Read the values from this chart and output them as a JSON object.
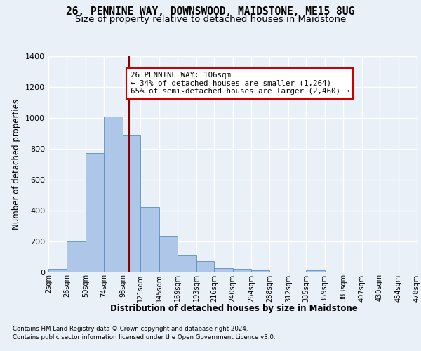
{
  "title_line1": "26, PENNINE WAY, DOWNSWOOD, MAIDSTONE, ME15 8UG",
  "title_line2": "Size of property relative to detached houses in Maidstone",
  "xlabel": "Distribution of detached houses by size in Maidstone",
  "ylabel": "Number of detached properties",
  "footnote1": "Contains HM Land Registry data © Crown copyright and database right 2024.",
  "footnote2": "Contains public sector information licensed under the Open Government Licence v3.0.",
  "bin_edges": [
    2,
    26,
    50,
    74,
    98,
    121,
    145,
    169,
    193,
    216,
    240,
    264,
    288,
    312,
    335,
    359,
    383,
    407,
    430,
    454,
    478
  ],
  "bin_counts": [
    22,
    200,
    770,
    1010,
    885,
    420,
    235,
    110,
    70,
    25,
    22,
    10,
    0,
    0,
    10,
    0,
    0,
    0,
    0,
    0
  ],
  "bar_color": "#aec6e8",
  "bar_edge_color": "#5a8fc0",
  "property_size": 106,
  "vline_color": "#8b0000",
  "annotation_text": "26 PENNINE WAY: 106sqm\n← 34% of detached houses are smaller (1,264)\n65% of semi-detached houses are larger (2,460) →",
  "annotation_box_color": "#ffffff",
  "annotation_box_edge": "#cc0000",
  "ylim": [
    0,
    1400
  ],
  "yticks": [
    0,
    200,
    400,
    600,
    800,
    1000,
    1200,
    1400
  ],
  "xtick_labels": [
    "2sqm",
    "26sqm",
    "50sqm",
    "74sqm",
    "98sqm",
    "121sqm",
    "145sqm",
    "169sqm",
    "193sqm",
    "216sqm",
    "240sqm",
    "264sqm",
    "288sqm",
    "312sqm",
    "335sqm",
    "359sqm",
    "383sqm",
    "407sqm",
    "430sqm",
    "454sqm",
    "478sqm"
  ],
  "background_color": "#eaf0f8",
  "grid_color": "#ffffff",
  "title_fontsize": 10.5,
  "subtitle_fontsize": 9.5,
  "annotation_fontsize": 7.8
}
